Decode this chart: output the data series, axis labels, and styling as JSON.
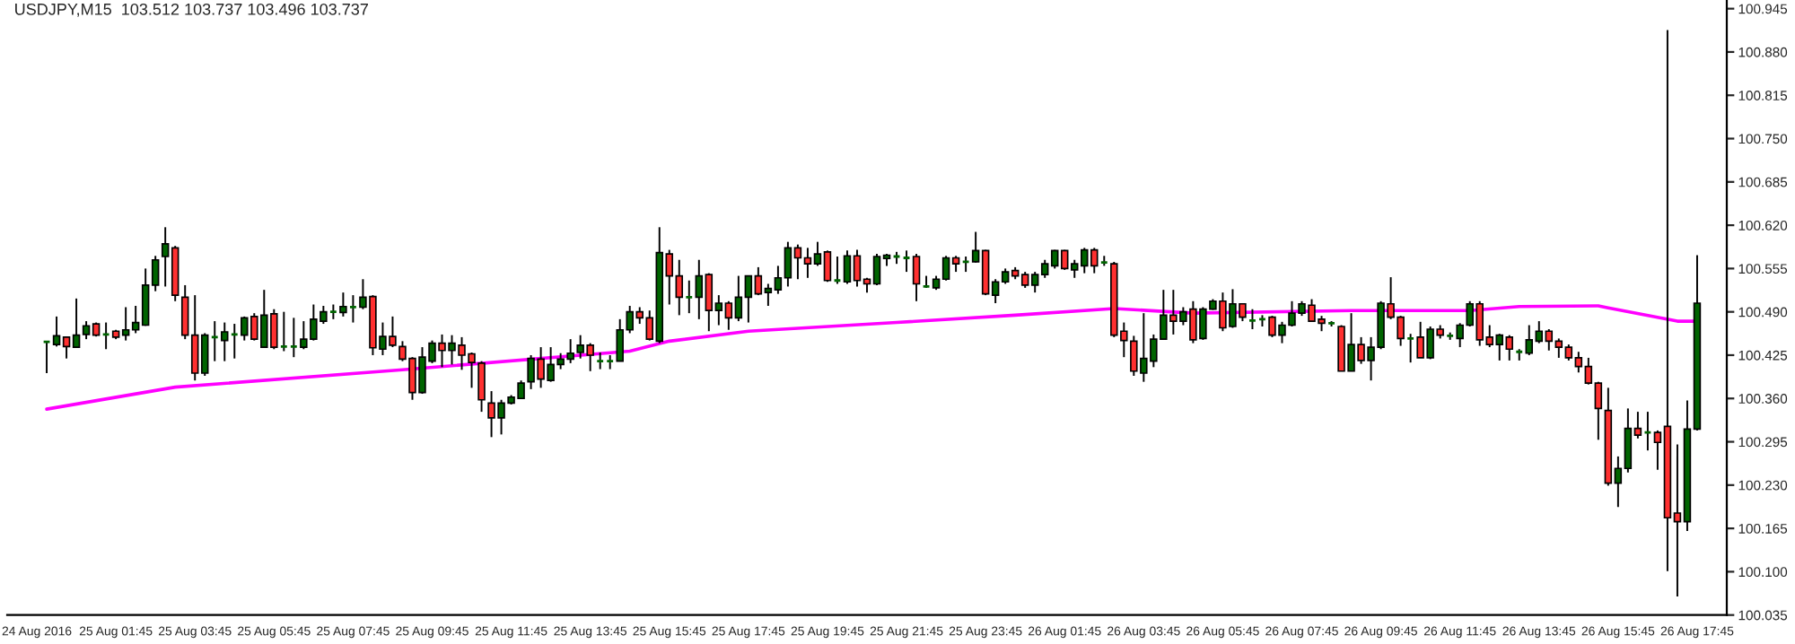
{
  "chart_data": {
    "type": "candlestick",
    "title": "USDJPY,M15  103.512 103.737 103.496 103.737",
    "xlim": [
      "2016-08-24T23:00",
      "2016-08-26T18:30"
    ],
    "ylim": [
      100.035,
      100.958
    ],
    "yticks": [
      100.035,
      {
        "value": 100.1,
        "label": "100.100"
      },
      100.165,
      {
        "value": 100.23,
        "label": "100.230"
      },
      100.295,
      {
        "value": 100.36,
        "label": "100.360"
      },
      100.425,
      {
        "value": 100.49,
        "label": "100.490"
      },
      100.555,
      {
        "value": 100.62,
        "label": "100.620"
      },
      100.685,
      {
        "value": 100.75,
        "label": "100.750"
      },
      100.815,
      {
        "value": 100.88,
        "label": "100.880"
      },
      100.945
    ],
    "xticks": [
      {
        "value": "2016-08-24T23:45",
        "label": "24 Aug 2016"
      },
      {
        "value": "2016-08-25T01:45",
        "label": "25 Aug 01:45"
      },
      {
        "value": "2016-08-25T03:45",
        "label": "25 Aug 03:45"
      },
      {
        "value": "2016-08-25T05:45",
        "label": "25 Aug 05:45"
      },
      {
        "value": "2016-08-25T07:45",
        "label": "25 Aug 07:45"
      },
      {
        "value": "2016-08-25T09:45",
        "label": "25 Aug 09:45"
      },
      {
        "value": "2016-08-25T11:45",
        "label": "25 Aug 11:45"
      },
      {
        "value": "2016-08-25T13:45",
        "label": "25 Aug 13:45"
      },
      {
        "value": "2016-08-25T15:45",
        "label": "25 Aug 15:45"
      },
      {
        "value": "2016-08-25T17:45",
        "label": "25 Aug 17:45"
      },
      {
        "value": "2016-08-25T19:45",
        "label": "25 Aug 19:45"
      },
      {
        "value": "2016-08-25T21:45",
        "label": "25 Aug 21:45"
      },
      {
        "value": "2016-08-25T23:45",
        "label": "25 Aug 23:45"
      },
      {
        "value": "2016-08-26T01:45",
        "label": "26 Aug 01:45"
      },
      {
        "value": "2016-08-26T03:45",
        "label": "26 Aug 03:45"
      },
      {
        "value": "2016-08-26T05:45",
        "label": "26 Aug 05:45"
      },
      {
        "value": "2016-08-26T07:45",
        "label": "26 Aug 07:45"
      },
      {
        "value": "2016-08-26T09:45",
        "label": "26 Aug 09:45"
      },
      {
        "value": "2016-08-26T11:45",
        "label": "26 Aug 11:45"
      },
      {
        "value": "2016-08-26T13:45",
        "label": "26 Aug 13:45"
      },
      {
        "value": "2016-08-26T15:45",
        "label": "26 Aug 15:45"
      },
      {
        "value": "2016-08-26T17:45",
        "label": "26 Aug 17:45"
      }
    ],
    "grid": false,
    "series": [
      {
        "type": "line",
        "color": "#ff00ff",
        "x": [
          "2016-08-25T00:00",
          "2016-08-25T03:15",
          "2016-08-25T09:00",
          "2016-08-25T14:45",
          "2016-08-25T15:45",
          "2016-08-25T17:45",
          "2016-08-25T21:30",
          "2016-08-26T00:30",
          "2016-08-26T03:00",
          "2016-08-26T05:00",
          "2016-08-26T09:00",
          "2016-08-26T12:00",
          "2016-08-26T13:15",
          "2016-08-26T15:15",
          "2016-08-26T15:30",
          "2016-08-26T17:15",
          "2016-08-26T17:45"
        ],
        "values": [
          100.344,
          100.377,
          100.403,
          100.431,
          100.446,
          100.461,
          100.474,
          100.485,
          100.495,
          100.488,
          100.492,
          100.492,
          100.498,
          100.499,
          100.496,
          100.476,
          100.476
        ]
      },
      {
        "colors": [
          "#006400",
          "#006400",
          "#ff3030",
          "#006400",
          "#006400",
          "#ff3030",
          "#006400",
          "#ff3030",
          "#006400",
          "#006400",
          "#006400",
          "#006400",
          "#006400",
          "#ff3030",
          "#ff3030",
          "#ff3030",
          "#006400",
          "#006400",
          "#006400",
          "#006400",
          "#006400",
          "#ff3030",
          "#006400",
          "#ff3030",
          "#006400",
          "#006400",
          "#006400",
          "#006400",
          "#006400",
          "#006400",
          "#006400",
          "#006400",
          "#006400",
          "#ff3030",
          "#006400",
          "#ff3030",
          "#ff3030",
          "#ff3030",
          "#006400",
          "#006400",
          "#ff3030",
          "#006400",
          "#ff3030",
          "#ff3030",
          "#ff3030",
          "#ff3030",
          "#006400",
          "#006400",
          "#006400",
          "#006400",
          "#ff3030",
          "#006400",
          "#006400",
          "#006400",
          "#006400",
          "#ff3030",
          "#006400",
          "#006400",
          "#006400",
          "#006400",
          "#ff3030",
          "#ff3030",
          "#006400",
          "#ff3030",
          "#ff3030",
          "#006400",
          "#006400",
          "#ff3030",
          "#006400",
          "#ff3030",
          "#006400",
          "#006400",
          "#ff3030",
          "#006400",
          "#006400",
          "#006400",
          "#ff3030",
          "#ff3030",
          "#006400",
          "#ff3030",
          "#006400",
          "#006400",
          "#ff3030",
          "#ff3030",
          "#006400",
          "#006400",
          "#006400",
          "#006400",
          "#ff3030",
          "#006400",
          "#006400",
          "#006400",
          "#ff3030",
          "#006400",
          "#006400",
          "#ff3030",
          "#006400",
          "#006400",
          "#ff3030",
          "#ff3030",
          "#006400",
          "#006400",
          "#006400",
          "#ff3030",
          "#006400",
          "#006400",
          "#ff3030",
          "#006400",
          "#ff3030",
          "#ff3030",
          "#ff3030",
          "#006400",
          "#006400",
          "#006400",
          "#ff3030",
          "#006400",
          "#ff3030",
          "#006400",
          "#006400",
          "#ff3030",
          "#006400",
          "#ff3030",
          "#006400",
          "#006400",
          "#ff3030",
          "#006400",
          "#006400",
          "#006400",
          "#ff3030",
          "#ff3030",
          "#006400",
          "#ff3030",
          "#006400",
          "#ff3030",
          "#006400",
          "#006400",
          "#ff3030",
          "#ff3030",
          "#006400",
          "#ff3030",
          "#006400",
          "#ff3030",
          "#006400",
          "#006400",
          "#006400",
          "#ff3030",
          "#ff3030",
          "#006400",
          "#ff3030",
          "#006400",
          "#006400",
          "#006400",
          "#ff3030",
          "#ff3030",
          "#ff3030",
          "#ff3030",
          "#ff3030",
          "#ff3030",
          "#ff3030",
          "#006400",
          "#006400",
          "#ff3030",
          "#006400",
          "#ff3030",
          "#ff3030",
          "#ff3030",
          "#006400",
          "#006400"
        ],
        "x": [
          "2016-08-25T00:00",
          "2016-08-25T00:15",
          "2016-08-25T00:30",
          "2016-08-25T00:45",
          "2016-08-25T01:00",
          "2016-08-25T01:15",
          "2016-08-25T01:30",
          "2016-08-25T01:45",
          "2016-08-25T02:00",
          "2016-08-25T02:15",
          "2016-08-25T02:30",
          "2016-08-25T02:45",
          "2016-08-25T03:00",
          "2016-08-25T03:15",
          "2016-08-25T03:30",
          "2016-08-25T03:45",
          "2016-08-25T04:00",
          "2016-08-25T04:15",
          "2016-08-25T04:30",
          "2016-08-25T04:45",
          "2016-08-25T05:00",
          "2016-08-25T05:15",
          "2016-08-25T05:30",
          "2016-08-25T05:45",
          "2016-08-25T06:00",
          "2016-08-25T06:15",
          "2016-08-25T06:30",
          "2016-08-25T06:45",
          "2016-08-25T07:00",
          "2016-08-25T07:15",
          "2016-08-25T07:30",
          "2016-08-25T07:45",
          "2016-08-25T08:00",
          "2016-08-25T08:15",
          "2016-08-25T08:30",
          "2016-08-25T08:45",
          "2016-08-25T09:00",
          "2016-08-25T09:15",
          "2016-08-25T09:30",
          "2016-08-25T09:45",
          "2016-08-25T10:00",
          "2016-08-25T10:15",
          "2016-08-25T10:30",
          "2016-08-25T10:45",
          "2016-08-25T11:00",
          "2016-08-25T11:15",
          "2016-08-25T11:30",
          "2016-08-25T11:45",
          "2016-08-25T12:00",
          "2016-08-25T12:15",
          "2016-08-25T12:30",
          "2016-08-25T12:45",
          "2016-08-25T13:00",
          "2016-08-25T13:15",
          "2016-08-25T13:30",
          "2016-08-25T13:45",
          "2016-08-25T14:00",
          "2016-08-25T14:15",
          "2016-08-25T14:30",
          "2016-08-25T14:45",
          "2016-08-25T15:00",
          "2016-08-25T15:15",
          "2016-08-25T15:30",
          "2016-08-25T15:45",
          "2016-08-25T16:00",
          "2016-08-25T16:15",
          "2016-08-25T16:30",
          "2016-08-25T16:45",
          "2016-08-25T17:00",
          "2016-08-25T17:15",
          "2016-08-25T17:30",
          "2016-08-25T17:45",
          "2016-08-25T18:00",
          "2016-08-25T18:15",
          "2016-08-25T18:30",
          "2016-08-25T18:45",
          "2016-08-25T19:00",
          "2016-08-25T19:15",
          "2016-08-25T19:30",
          "2016-08-25T19:45",
          "2016-08-25T20:00",
          "2016-08-25T20:15",
          "2016-08-25T20:30",
          "2016-08-25T20:45",
          "2016-08-25T21:00",
          "2016-08-25T21:15",
          "2016-08-25T21:30",
          "2016-08-25T21:45",
          "2016-08-25T22:00",
          "2016-08-25T22:15",
          "2016-08-25T22:30",
          "2016-08-25T22:45",
          "2016-08-25T23:00",
          "2016-08-25T23:15",
          "2016-08-25T23:30",
          "2016-08-25T23:45",
          "2016-08-26T00:00",
          "2016-08-26T00:15",
          "2016-08-26T00:30",
          "2016-08-26T00:45",
          "2016-08-26T01:00",
          "2016-08-26T01:15",
          "2016-08-26T01:30",
          "2016-08-26T01:45",
          "2016-08-26T02:00",
          "2016-08-26T02:15",
          "2016-08-26T02:30",
          "2016-08-26T02:45",
          "2016-08-26T03:00",
          "2016-08-26T03:15",
          "2016-08-26T03:30",
          "2016-08-26T03:45",
          "2016-08-26T04:00",
          "2016-08-26T04:15",
          "2016-08-26T04:30",
          "2016-08-26T04:45",
          "2016-08-26T05:00",
          "2016-08-26T05:15",
          "2016-08-26T05:30",
          "2016-08-26T05:45",
          "2016-08-26T06:00",
          "2016-08-26T06:15",
          "2016-08-26T06:30",
          "2016-08-26T06:45",
          "2016-08-26T07:00",
          "2016-08-26T07:15",
          "2016-08-26T07:30",
          "2016-08-26T07:45",
          "2016-08-26T08:00",
          "2016-08-26T08:15",
          "2016-08-26T08:30",
          "2016-08-26T08:45",
          "2016-08-26T09:00",
          "2016-08-26T09:15",
          "2016-08-26T09:30",
          "2016-08-26T09:45",
          "2016-08-26T10:00",
          "2016-08-26T10:15",
          "2016-08-26T10:30",
          "2016-08-26T10:45",
          "2016-08-26T11:00",
          "2016-08-26T11:15",
          "2016-08-26T11:30",
          "2016-08-26T11:45",
          "2016-08-26T12:00",
          "2016-08-26T12:15",
          "2016-08-26T12:30",
          "2016-08-26T12:45",
          "2016-08-26T13:00",
          "2016-08-26T13:15",
          "2016-08-26T13:30",
          "2016-08-26T13:45",
          "2016-08-26T14:00",
          "2016-08-26T14:15",
          "2016-08-26T14:30",
          "2016-08-26T14:45",
          "2016-08-26T15:00",
          "2016-08-26T15:15",
          "2016-08-26T15:30",
          "2016-08-26T15:45",
          "2016-08-26T16:00",
          "2016-08-26T16:15",
          "2016-08-26T16:30",
          "2016-08-26T16:45",
          "2016-08-26T17:00",
          "2016-08-26T17:15",
          "2016-08-26T17:30",
          "2016-08-26T17:45"
        ],
        "ohlc": [
          [
            100.445,
            100.446,
            100.398,
            100.445
          ],
          [
            100.441,
            100.483,
            100.438,
            100.454
          ],
          [
            100.452,
            100.452,
            100.42,
            100.438
          ],
          [
            100.437,
            100.51,
            100.437,
            100.455
          ],
          [
            100.456,
            100.476,
            100.449,
            100.469
          ],
          [
            100.472,
            100.474,
            100.453,
            100.455
          ],
          [
            100.456,
            100.474,
            100.434,
            100.456
          ],
          [
            100.461,
            100.463,
            100.449,
            100.452
          ],
          [
            100.455,
            100.497,
            100.447,
            100.463
          ],
          [
            100.463,
            100.499,
            100.458,
            100.474
          ],
          [
            100.47,
            100.555,
            100.469,
            100.53
          ],
          [
            100.53,
            100.574,
            100.521,
            100.568
          ],
          [
            100.573,
            100.617,
            100.528,
            100.592
          ],
          [
            100.586,
            100.589,
            100.506,
            100.515
          ],
          [
            100.512,
            100.53,
            100.449,
            100.455
          ],
          [
            100.455,
            100.515,
            100.387,
            100.398
          ],
          [
            100.398,
            100.458,
            100.394,
            100.455
          ],
          [
            100.452,
            100.476,
            100.416,
            100.452
          ],
          [
            100.447,
            100.474,
            100.416,
            100.46
          ],
          [
            100.456,
            100.472,
            100.42,
            100.456
          ],
          [
            100.455,
            100.483,
            100.447,
            100.481
          ],
          [
            100.483,
            100.488,
            100.447,
            100.449
          ],
          [
            100.437,
            100.523,
            100.437,
            100.485
          ],
          [
            100.487,
            100.494,
            100.434,
            100.437
          ],
          [
            100.438,
            100.49,
            100.431,
            100.438
          ],
          [
            100.438,
            100.481,
            100.422,
            100.438
          ],
          [
            100.437,
            100.476,
            100.434,
            100.449
          ],
          [
            100.449,
            100.501,
            100.447,
            100.479
          ],
          [
            100.476,
            100.499,
            100.472,
            100.49
          ],
          [
            100.49,
            100.501,
            100.479,
            100.49
          ],
          [
            100.489,
            100.519,
            100.483,
            100.498
          ],
          [
            100.497,
            100.515,
            100.474,
            100.497
          ],
          [
            100.497,
            100.539,
            100.494,
            100.512
          ],
          [
            100.513,
            100.515,
            100.425,
            100.436
          ],
          [
            100.434,
            100.474,
            100.425,
            100.453
          ],
          [
            100.453,
            100.483,
            100.437,
            100.44
          ],
          [
            100.438,
            100.446,
            100.416,
            100.419
          ],
          [
            100.42,
            100.422,
            100.358,
            100.369
          ],
          [
            100.369,
            100.437,
            100.367,
            100.422
          ],
          [
            100.416,
            100.447,
            100.413,
            100.443
          ],
          [
            100.443,
            100.456,
            100.407,
            100.432
          ],
          [
            100.432,
            100.455,
            100.411,
            100.443
          ],
          [
            100.44,
            100.452,
            100.403,
            100.425
          ],
          [
            100.427,
            100.429,
            100.376,
            100.414
          ],
          [
            100.413,
            100.416,
            100.34,
            100.358
          ],
          [
            100.353,
            100.371,
            100.302,
            100.331
          ],
          [
            100.331,
            100.358,
            100.306,
            100.353
          ],
          [
            100.353,
            100.365,
            100.351,
            100.362
          ],
          [
            100.36,
            100.387,
            100.36,
            100.383
          ],
          [
            100.385,
            100.425,
            100.374,
            100.42
          ],
          [
            100.419,
            100.437,
            100.376,
            100.389
          ],
          [
            100.387,
            100.437,
            100.385,
            100.411
          ],
          [
            100.411,
            100.428,
            100.404,
            100.419
          ],
          [
            100.419,
            100.449,
            100.413,
            100.428
          ],
          [
            100.429,
            100.455,
            100.42,
            100.44
          ],
          [
            100.44,
            100.443,
            100.401,
            100.425
          ],
          [
            100.416,
            100.429,
            100.404,
            100.416
          ],
          [
            100.416,
            100.425,
            100.404,
            100.416
          ],
          [
            100.416,
            100.479,
            100.416,
            100.463
          ],
          [
            100.463,
            100.499,
            100.458,
            100.49
          ],
          [
            100.49,
            100.497,
            100.472,
            100.481
          ],
          [
            100.481,
            100.492,
            100.447,
            100.449
          ],
          [
            100.446,
            100.617,
            100.443,
            100.579
          ],
          [
            100.577,
            100.583,
            100.501,
            100.544
          ],
          [
            100.544,
            100.568,
            100.485,
            100.512
          ],
          [
            100.512,
            100.537,
            100.488,
            100.512
          ],
          [
            100.512,
            100.568,
            100.479,
            100.544
          ],
          [
            100.546,
            100.548,
            100.461,
            100.492
          ],
          [
            100.492,
            100.515,
            100.47,
            100.503
          ],
          [
            100.503,
            100.506,
            100.463,
            100.481
          ],
          [
            100.481,
            100.544,
            100.476,
            100.512
          ],
          [
            100.512,
            100.544,
            100.474,
            100.544
          ],
          [
            100.544,
            100.557,
            100.515,
            100.517
          ],
          [
            100.519,
            100.532,
            100.499,
            100.525
          ],
          [
            100.523,
            100.559,
            100.517,
            100.541
          ],
          [
            100.541,
            100.595,
            100.528,
            100.586
          ],
          [
            100.586,
            100.591,
            100.539,
            100.571
          ],
          [
            100.571,
            100.586,
            100.541,
            100.562
          ],
          [
            100.562,
            100.595,
            100.559,
            100.577
          ],
          [
            100.58,
            100.582,
            100.535,
            100.537
          ],
          [
            100.537,
            100.573,
            100.532,
            100.537
          ],
          [
            100.535,
            100.582,
            100.532,
            100.574
          ],
          [
            100.574,
            100.583,
            100.528,
            100.537
          ],
          [
            100.539,
            100.541,
            100.519,
            100.532
          ],
          [
            100.532,
            100.577,
            100.53,
            100.573
          ],
          [
            100.57,
            100.577,
            100.559,
            100.575
          ],
          [
            100.573,
            100.58,
            100.562,
            100.573
          ],
          [
            100.571,
            100.582,
            100.55,
            100.571
          ],
          [
            100.573,
            100.577,
            100.506,
            100.532
          ],
          [
            100.528,
            100.544,
            100.526,
            100.528
          ],
          [
            100.526,
            100.544,
            100.523,
            100.539
          ],
          [
            100.539,
            100.574,
            100.537,
            100.571
          ],
          [
            100.571,
            100.574,
            100.55,
            100.562
          ],
          [
            100.565,
            100.573,
            100.55,
            100.565
          ],
          [
            100.565,
            100.61,
            100.564,
            100.582
          ],
          [
            100.582,
            100.583,
            100.515,
            100.517
          ],
          [
            100.515,
            100.539,
            100.503,
            100.535
          ],
          [
            100.535,
            100.555,
            100.532,
            100.55
          ],
          [
            100.552,
            100.557,
            100.539,
            100.544
          ],
          [
            100.546,
            100.55,
            100.526,
            100.53
          ],
          [
            100.53,
            100.55,
            100.519,
            100.546
          ],
          [
            100.546,
            100.568,
            100.541,
            100.562
          ],
          [
            100.559,
            100.583,
            100.555,
            100.582
          ],
          [
            100.582,
            100.583,
            100.553,
            100.555
          ],
          [
            100.553,
            100.568,
            100.541,
            100.562
          ],
          [
            100.559,
            100.586,
            100.548,
            100.583
          ],
          [
            100.583,
            100.586,
            100.548,
            100.559
          ],
          [
            100.564,
            100.574,
            100.559,
            100.564
          ],
          [
            100.562,
            100.565,
            100.452,
            100.455
          ],
          [
            100.461,
            100.474,
            100.422,
            100.447
          ],
          [
            100.446,
            100.454,
            100.394,
            100.401
          ],
          [
            100.398,
            100.488,
            100.385,
            100.42
          ],
          [
            100.416,
            100.456,
            100.407,
            100.449
          ],
          [
            100.449,
            100.523,
            100.449,
            100.485
          ],
          [
            100.485,
            100.523,
            100.456,
            100.476
          ],
          [
            100.476,
            100.497,
            100.47,
            100.49
          ],
          [
            100.494,
            100.506,
            100.443,
            100.448
          ],
          [
            100.45,
            100.497,
            100.448,
            100.494
          ],
          [
            100.494,
            100.509,
            100.493,
            100.506
          ],
          [
            100.506,
            100.519,
            100.461,
            100.466
          ],
          [
            100.468,
            100.524,
            100.466,
            100.502
          ],
          [
            100.502,
            100.503,
            100.476,
            100.482
          ],
          [
            100.477,
            100.494,
            100.464,
            100.477
          ],
          [
            100.479,
            100.485,
            100.468,
            100.479
          ],
          [
            100.482,
            100.484,
            100.452,
            100.455
          ],
          [
            100.455,
            100.475,
            100.443,
            100.47
          ],
          [
            100.47,
            100.506,
            100.468,
            100.488
          ],
          [
            100.488,
            100.506,
            100.484,
            100.502
          ],
          [
            100.5,
            100.509,
            100.475,
            100.476
          ],
          [
            100.479,
            100.484,
            100.461,
            100.473
          ],
          [
            100.473,
            100.476,
            100.468,
            100.473
          ],
          [
            100.468,
            100.47,
            100.401,
            100.401
          ],
          [
            100.401,
            100.488,
            100.401,
            100.441
          ],
          [
            100.441,
            100.452,
            100.412,
            100.417
          ],
          [
            100.417,
            100.452,
            100.387,
            100.437
          ],
          [
            100.437,
            100.506,
            100.434,
            100.503
          ],
          [
            100.502,
            100.542,
            100.479,
            100.482
          ],
          [
            100.482,
            100.484,
            100.439,
            100.45
          ],
          [
            100.45,
            100.457,
            100.414,
            100.45
          ],
          [
            100.452,
            100.475,
            100.421,
            100.421
          ],
          [
            100.421,
            100.468,
            100.419,
            100.464
          ],
          [
            100.464,
            100.47,
            100.45,
            100.455
          ],
          [
            100.454,
            100.459,
            100.448,
            100.454
          ],
          [
            100.45,
            100.473,
            100.437,
            100.47
          ],
          [
            100.47,
            100.506,
            100.468,
            100.502
          ],
          [
            100.502,
            100.506,
            100.439,
            100.448
          ],
          [
            100.452,
            100.47,
            100.437,
            100.441
          ],
          [
            100.441,
            100.457,
            100.417,
            100.455
          ],
          [
            100.452,
            100.455,
            100.417,
            100.434
          ],
          [
            100.43,
            100.434,
            100.417,
            100.43
          ],
          [
            100.428,
            100.47,
            100.425,
            100.448
          ],
          [
            100.446,
            100.476,
            100.443,
            100.461
          ],
          [
            100.461,
            100.464,
            100.432,
            100.446
          ],
          [
            100.446,
            100.45,
            100.421,
            100.437
          ],
          [
            100.437,
            100.441,
            100.417,
            100.421
          ],
          [
            100.421,
            100.43,
            100.399,
            100.408
          ],
          [
            100.408,
            100.421,
            100.381,
            100.383
          ],
          [
            100.383,
            100.385,
            100.298,
            100.345
          ],
          [
            100.342,
            100.376,
            100.229,
            100.233
          ],
          [
            100.233,
            100.273,
            100.197,
            100.255
          ],
          [
            100.255,
            100.345,
            100.249,
            100.315
          ],
          [
            100.315,
            100.34,
            100.3,
            100.305
          ],
          [
            100.309,
            100.34,
            100.282,
            100.309
          ],
          [
            100.309,
            100.312,
            100.253,
            100.294
          ],
          [
            100.318,
            100.913,
            100.101,
            100.181
          ],
          [
            100.188,
            100.291,
            100.063,
            100.175
          ],
          [
            100.175,
            100.357,
            100.161,
            100.314
          ],
          [
            100.314,
            100.575,
            100.312,
            100.503
          ]
        ]
      }
    ]
  }
}
